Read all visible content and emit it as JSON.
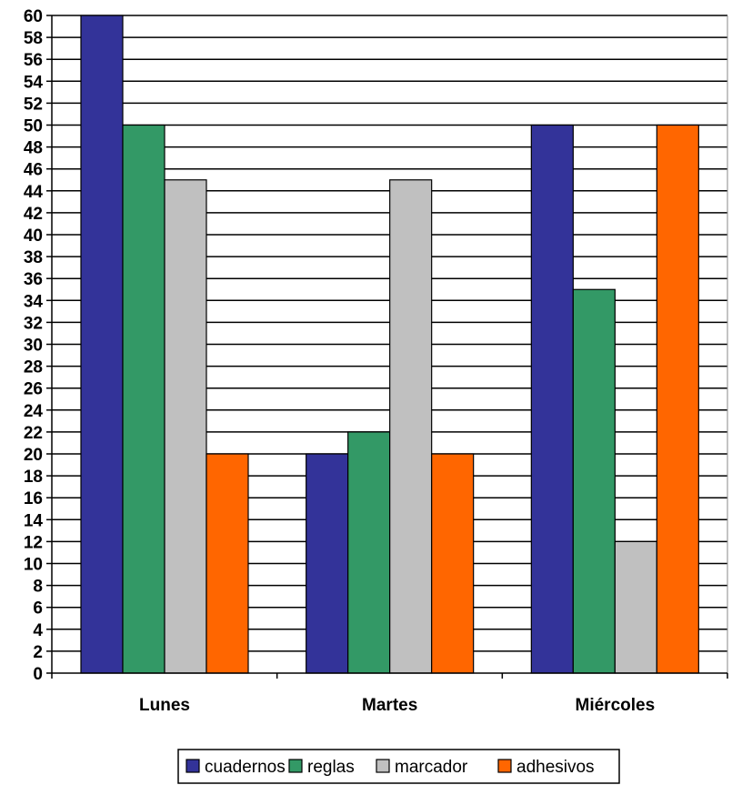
{
  "chart_data": {
    "type": "bar",
    "categories": [
      "Lunes",
      "Martes",
      "Miércoles"
    ],
    "series": [
      {
        "name": "cuadernos",
        "values": [
          60,
          20,
          50
        ],
        "color": "#333399"
      },
      {
        "name": "reglas",
        "values": [
          50,
          22,
          35
        ],
        "color": "#339966"
      },
      {
        "name": "marcador",
        "values": [
          45,
          45,
          12
        ],
        "color": "#C0C0C0"
      },
      {
        "name": "adhesivos",
        "values": [
          20,
          20,
          50
        ],
        "color": "#FF6600"
      }
    ],
    "ylim": [
      0,
      60
    ],
    "ytick_step": 2,
    "grid": true,
    "legend_position": "bottom"
  }
}
